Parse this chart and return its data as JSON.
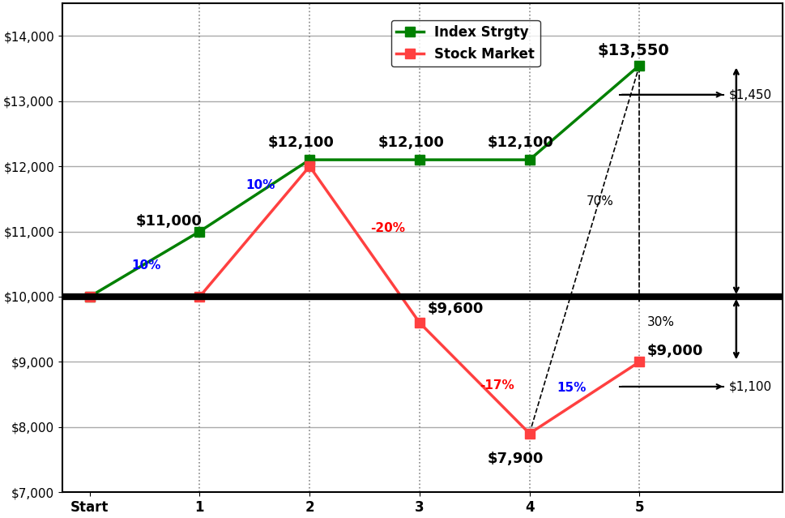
{
  "index_x": [
    0,
    1,
    2,
    3,
    4,
    5
  ],
  "index_y": [
    10000,
    11000,
    12100,
    12100,
    12100,
    13550
  ],
  "stock_x": [
    0,
    1,
    2,
    3,
    4,
    5
  ],
  "stock_y": [
    10000,
    10000,
    12000,
    9600,
    7900,
    9000
  ],
  "index_color": "#008000",
  "stock_color": "#FF4040",
  "index_label": "Index Strgty",
  "stock_label": "Stock Market",
  "hline_y": 10000,
  "hline_color": "#000000",
  "ylim": [
    7000,
    14500
  ],
  "yticks": [
    7000,
    8000,
    9000,
    10000,
    11000,
    12000,
    13000,
    14000
  ],
  "xlabel_ticks": [
    "Start",
    "1",
    "2",
    "3",
    "4",
    "5"
  ],
  "bg_color": "#FFFFFF",
  "grid_color": "#AAAAAA",
  "vline_color": "#888888",
  "xlim_left": -0.25,
  "xlim_right": 6.3
}
